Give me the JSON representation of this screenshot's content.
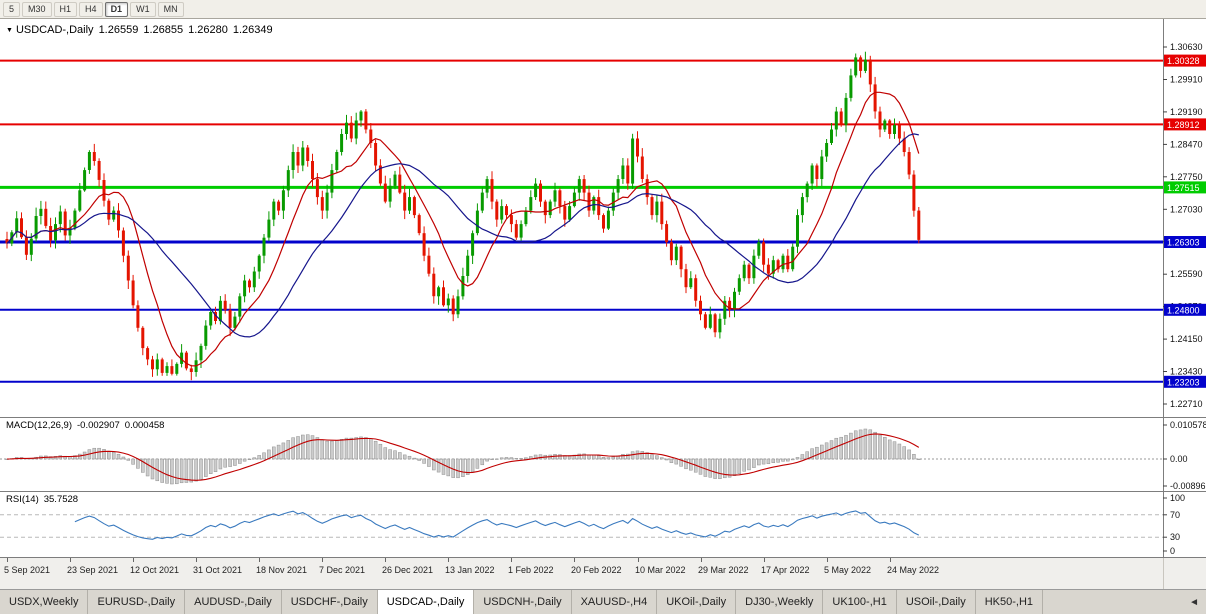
{
  "toolbar": {
    "timeframes": [
      {
        "label": "5",
        "active": false
      },
      {
        "label": "M30",
        "active": false
      },
      {
        "label": "H1",
        "active": false
      },
      {
        "label": "H4",
        "active": false
      },
      {
        "label": "D1",
        "active": true
      },
      {
        "label": "W1",
        "active": false
      },
      {
        "label": "MN",
        "active": false
      }
    ]
  },
  "main_chart": {
    "marker_icon": "▼",
    "symbol_title": "USDCAD-,Daily",
    "quote": {
      "open": "1.26559",
      "high": "1.26855",
      "low": "1.26280",
      "close": "1.26349"
    }
  },
  "macd_panel": {
    "label": "MACD(12,26,9)",
    "value_main": "-0.002907",
    "value_signal": "0.000458",
    "axis_labels": [
      "0.010578",
      "0.00",
      "-0.00896"
    ]
  },
  "rsi_panel": {
    "label": "RSI(14)",
    "value": "35.7528",
    "axis_labels": [
      "100",
      "70",
      "30",
      "0"
    ]
  },
  "tabbar": {
    "scroll_left_icon": "◄",
    "tabs": [
      {
        "label": "USDX,Weekly",
        "selected": false
      },
      {
        "label": "EURUSD-,Daily",
        "selected": false
      },
      {
        "label": "AUDUSD-,Daily",
        "selected": false
      },
      {
        "label": "USDCHF-,Daily",
        "selected": false
      },
      {
        "label": "USDCAD-,Daily",
        "selected": true
      },
      {
        "label": "USDCNH-,Daily",
        "selected": false
      },
      {
        "label": "XAUUSD-,H4",
        "selected": false
      },
      {
        "label": "UKOil-,Daily",
        "selected": false
      },
      {
        "label": "DJ30-,Weekly",
        "selected": false
      },
      {
        "label": "UK100-,H1",
        "selected": false
      },
      {
        "label": "USOil-,Daily",
        "selected": false
      },
      {
        "label": "HK50-,H1",
        "selected": false
      }
    ]
  },
  "colors": {
    "candle_up": "#089a00",
    "candle_down": "#e41400",
    "ma_fast": "#c00000",
    "ma_slow": "#16168c",
    "macd_signal": "#c00000",
    "macd_hist_fill": "#cccccc",
    "macd_hist_stroke": "#8f8f8f",
    "rsi_line": "#3a7abf",
    "level_red": "#e60000",
    "level_green": "#00cc00",
    "level_blue": "#0202cc"
  },
  "chart_data": {
    "type": "candlestick",
    "symbol": "USDCAD",
    "timeframe": "Daily",
    "y_range": [
      1.2271,
      1.3063
    ],
    "y_axis_labels": [
      "1.30630",
      "1.29910",
      "1.29190",
      "1.28470",
      "1.27750",
      "1.27030",
      "1.26310",
      "1.25590",
      "1.24870",
      "1.24150",
      "1.23430",
      "1.22710"
    ],
    "levels": [
      {
        "price": 1.30328,
        "label": "1.30328",
        "color": "#e60000",
        "width": 2
      },
      {
        "price": 1.28912,
        "label": "1.28912",
        "color": "#e60000",
        "width": 2
      },
      {
        "price": 1.27515,
        "label": "1.27515",
        "color": "#00cc00",
        "width": 3
      },
      {
        "price": 1.26303,
        "label": "1.26303",
        "color": "#0202cc",
        "width": 3
      },
      {
        "price": 1.248,
        "label": "1.24800",
        "color": "#0202cc",
        "width": 2
      },
      {
        "price": 1.23203,
        "label": "1.23203",
        "color": "#0202cc",
        "width": 2
      }
    ],
    "moving_averages": [
      {
        "window": 10,
        "color": "#c00000"
      },
      {
        "window": 25,
        "color": "#16168c"
      }
    ],
    "indicators": [
      {
        "name": "MACD",
        "params": [
          12,
          26,
          9
        ],
        "shown_values": [
          "-0.002907",
          "0.000458"
        ],
        "axis": [
          "0.010578",
          "0.00",
          "-0.00896"
        ]
      },
      {
        "name": "RSI",
        "params": [
          14
        ],
        "shown_value": "35.7528",
        "axis": [
          "100",
          "70",
          "30",
          "0"
        ],
        "guide_levels": [
          70,
          30
        ]
      }
    ],
    "x_labels": [
      {
        "text": "5 Sep 2021",
        "index": 0
      },
      {
        "text": "23 Sep 2021",
        "index": 13
      },
      {
        "text": "12 Oct 2021",
        "index": 26
      },
      {
        "text": "31 Oct 2021",
        "index": 39
      },
      {
        "text": "18 Nov 2021",
        "index": 52
      },
      {
        "text": "7 Dec 2021",
        "index": 65
      },
      {
        "text": "26 Dec 2021",
        "index": 78
      },
      {
        "text": "13 Jan 2022",
        "index": 91
      },
      {
        "text": "1 Feb 2022",
        "index": 104
      },
      {
        "text": "20 Feb 2022",
        "index": 117
      },
      {
        "text": "10 Mar 2022",
        "index": 130
      },
      {
        "text": "29 Mar 2022",
        "index": 143
      },
      {
        "text": "17 Apr 2022",
        "index": 156
      },
      {
        "text": "5 May 2022",
        "index": 169
      },
      {
        "text": "24 May 2022",
        "index": 182
      }
    ],
    "candles": {
      "closes": [
        1.2627,
        1.2652,
        1.2683,
        1.2641,
        1.2602,
        1.2638,
        1.2688,
        1.2704,
        1.2666,
        1.2634,
        1.267,
        1.2698,
        1.2645,
        1.2662,
        1.27,
        1.2745,
        1.279,
        1.283,
        1.281,
        1.2768,
        1.2722,
        1.268,
        1.27,
        1.2656,
        1.26,
        1.2545,
        1.249,
        1.244,
        1.2395,
        1.237,
        1.2348,
        1.237,
        1.234,
        1.2355,
        1.2338,
        1.236,
        1.2385,
        1.235,
        1.2342,
        1.2368,
        1.24,
        1.2445,
        1.2475,
        1.2455,
        1.25,
        1.248,
        1.244,
        1.2465,
        1.251,
        1.2545,
        1.253,
        1.2565,
        1.26,
        1.264,
        1.268,
        1.272,
        1.27,
        1.2745,
        1.279,
        1.283,
        1.28,
        1.284,
        1.281,
        1.277,
        1.273,
        1.27,
        1.274,
        1.279,
        1.283,
        1.287,
        1.2895,
        1.286,
        1.29,
        1.292,
        1.288,
        1.285,
        1.28,
        1.276,
        1.272,
        1.2755,
        1.278,
        1.274,
        1.27,
        1.273,
        1.269,
        1.265,
        1.26,
        1.256,
        1.251,
        1.253,
        1.249,
        1.2505,
        1.247,
        1.251,
        1.2555,
        1.26,
        1.265,
        1.27,
        1.274,
        1.277,
        1.272,
        1.268,
        1.271,
        1.269,
        1.267,
        1.264,
        1.267,
        1.27,
        1.273,
        1.276,
        1.272,
        1.269,
        1.272,
        1.2745,
        1.271,
        1.268,
        1.271,
        1.274,
        1.277,
        1.274,
        1.27,
        1.273,
        1.269,
        1.266,
        1.27,
        1.274,
        1.277,
        1.28,
        1.276,
        1.286,
        1.282,
        1.277,
        1.273,
        1.269,
        1.272,
        1.267,
        1.263,
        1.259,
        1.262,
        1.257,
        1.253,
        1.255,
        1.25,
        1.247,
        1.244,
        1.247,
        1.243,
        1.246,
        1.25,
        1.248,
        1.252,
        1.255,
        1.258,
        1.255,
        1.26,
        1.263,
        1.258,
        1.256,
        1.259,
        1.257,
        1.26,
        1.257,
        1.262,
        1.269,
        1.273,
        1.276,
        1.28,
        1.277,
        1.282,
        1.285,
        1.288,
        1.292,
        1.289,
        1.295,
        1.3,
        1.304,
        1.301,
        1.3035,
        1.298,
        1.292,
        1.288,
        1.29,
        1.287,
        1.289,
        1.286,
        1.283,
        1.278,
        1.27,
        1.2635
      ]
    }
  }
}
